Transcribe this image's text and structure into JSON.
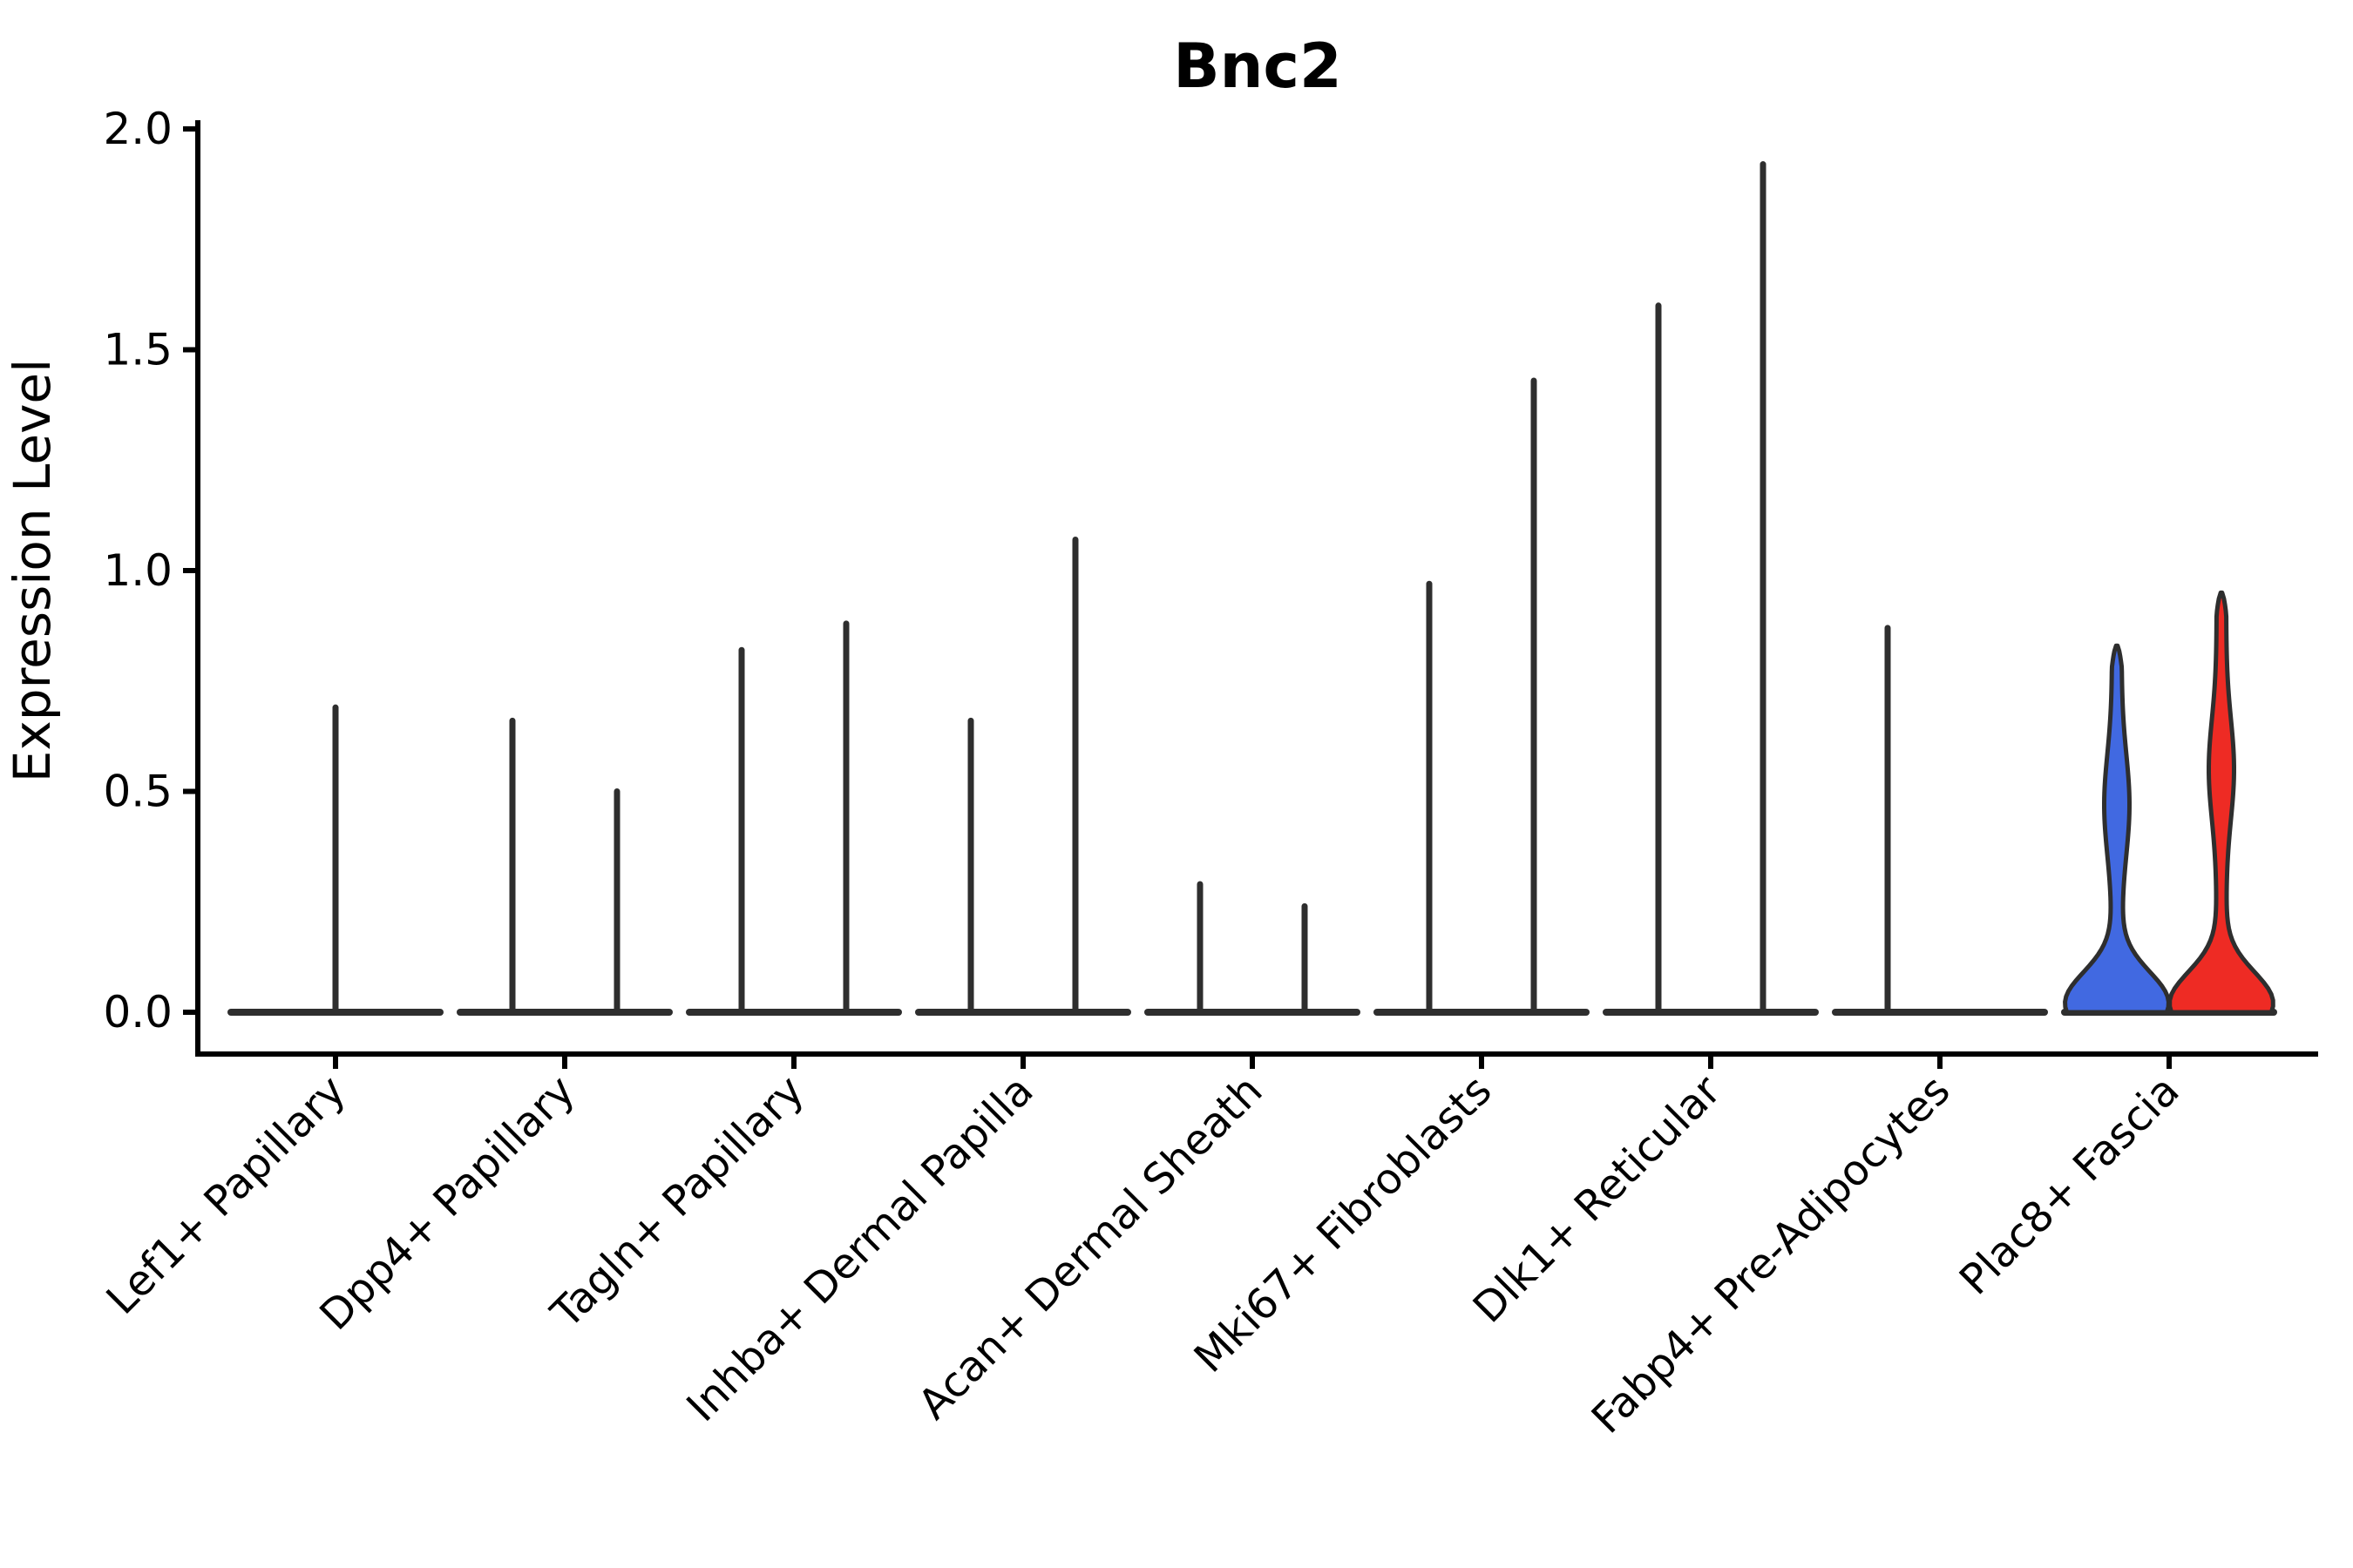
{
  "title": "Bnc2",
  "axes": {
    "ylabel": "Expression Level",
    "ytick_labels": [
      "0.0",
      "0.5",
      "1.0",
      "1.5",
      "2.0"
    ]
  },
  "colors": {
    "axis": "#000000",
    "violin_outline": "#2e2e2e",
    "blue_fill": "#4169e1",
    "red_fill": "#ee2b24"
  },
  "chart_data": {
    "type": "violin",
    "title": "Bnc2",
    "xlabel": "",
    "ylabel": "Expression Level",
    "ylim": [
      0,
      2.0
    ],
    "yticks": [
      0.0,
      0.5,
      1.0,
      1.5,
      2.0
    ],
    "grid": false,
    "legend_position": "none",
    "categories": [
      "Lef1+ Papillary",
      "Dpp4+ Papillary",
      "Tagln+ Papillary",
      "Inhba+ Dermal Papilla",
      "Acan+ Dermal Sheath",
      "Mki67+ Fibroblasts",
      "Dlk1+ Reticular",
      "Fabp4+ Pre-Adipocytes",
      "Plac8+ Fascia"
    ],
    "violins": [
      {
        "category": "Lef1+ Papillary",
        "items": [
          {
            "side": "center",
            "max_expression": 0.69,
            "style": "collapsed-spike",
            "fill": "none"
          }
        ]
      },
      {
        "category": "Dpp4+ Papillary",
        "items": [
          {
            "side": "left",
            "max_expression": 0.66,
            "style": "collapsed-spike",
            "fill": "none"
          },
          {
            "side": "right",
            "max_expression": 0.5,
            "style": "collapsed-spike",
            "fill": "none"
          }
        ]
      },
      {
        "category": "Tagln+ Papillary",
        "items": [
          {
            "side": "left",
            "max_expression": 0.82,
            "style": "collapsed-spike",
            "fill": "none"
          },
          {
            "side": "right",
            "max_expression": 0.88,
            "style": "collapsed-spike",
            "fill": "none"
          }
        ]
      },
      {
        "category": "Inhba+ Dermal Papilla",
        "items": [
          {
            "side": "left",
            "max_expression": 0.66,
            "style": "collapsed-spike",
            "fill": "none"
          },
          {
            "side": "right",
            "max_expression": 1.07,
            "style": "collapsed-spike",
            "fill": "none"
          }
        ]
      },
      {
        "category": "Acan+ Dermal Sheath",
        "items": [
          {
            "side": "left",
            "max_expression": 0.29,
            "style": "collapsed-spike",
            "fill": "none"
          },
          {
            "side": "right",
            "max_expression": 0.24,
            "style": "collapsed-spike",
            "fill": "none"
          }
        ]
      },
      {
        "category": "Mki67+ Fibroblasts",
        "items": [
          {
            "side": "left",
            "max_expression": 0.97,
            "style": "collapsed-spike",
            "fill": "none"
          },
          {
            "side": "right",
            "max_expression": 1.43,
            "style": "collapsed-spike",
            "fill": "none"
          }
        ]
      },
      {
        "category": "Dlk1+ Reticular",
        "items": [
          {
            "side": "left",
            "max_expression": 1.6,
            "style": "collapsed-spike",
            "fill": "none"
          },
          {
            "side": "right",
            "max_expression": 1.92,
            "style": "collapsed-spike",
            "fill": "none"
          }
        ]
      },
      {
        "category": "Fabp4+ Pre-Adipocytes",
        "items": [
          {
            "side": "left",
            "max_expression": 0.87,
            "style": "collapsed-spike",
            "fill": "none"
          }
        ]
      },
      {
        "category": "Plac8+ Fascia",
        "items": [
          {
            "side": "left",
            "max_expression": 0.83,
            "style": "filled-violin",
            "fill": "#4169e1",
            "bulge_center": 0.47
          },
          {
            "side": "right",
            "max_expression": 0.95,
            "style": "filled-violin",
            "fill": "#ee2b24",
            "bulge_center": 0.55
          }
        ]
      }
    ]
  }
}
